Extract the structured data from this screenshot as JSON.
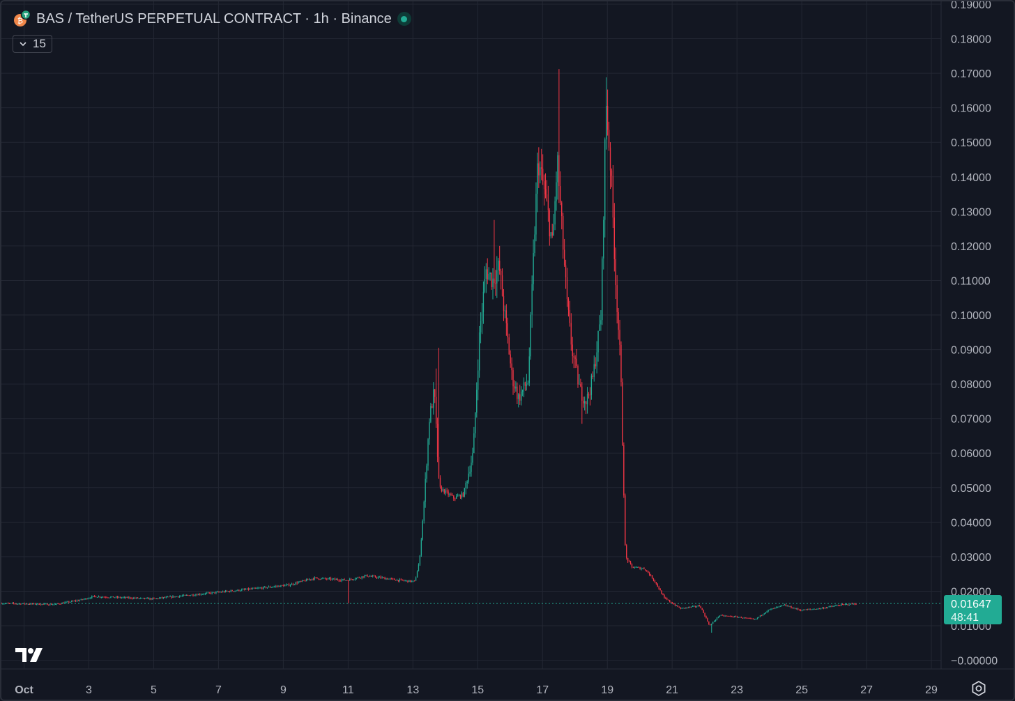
{
  "header": {
    "title": "BAS / TetherUS PERPETUAL CONTRACT · 1h · Binance",
    "indicator_value": "15",
    "status": "open"
  },
  "colors": {
    "background": "#131722",
    "grid": "#232733",
    "up": "#22ab94",
    "down": "#f23645",
    "axis_text": "#b2b5be",
    "price_tag": "#22ab94"
  },
  "icons": {
    "symbol": "bnb-tether-coin-icon",
    "collapse": "chevron-down-icon",
    "logo": "tradingview-logo-icon",
    "settings": "gear-icon"
  },
  "chart_data": {
    "type": "candlestick",
    "title": "BAS / TetherUS PERPETUAL CONTRACT · 1h · Binance",
    "interval": "1h",
    "y_axis": {
      "position": "right",
      "range": [
        -0.0025,
        0.1908
      ],
      "ticks": [
        "0.19000",
        "0.18000",
        "0.17000",
        "0.16000",
        "0.15000",
        "0.14000",
        "0.13000",
        "0.12000",
        "0.11000",
        "0.10000",
        "0.09000",
        "0.08000",
        "0.07000",
        "0.06000",
        "0.05000",
        "0.04000",
        "0.03000",
        "0.02000",
        "0.01000",
        "−0.00000"
      ]
    },
    "x_axis": {
      "range_days": [
        0.3,
        29.3
      ],
      "ticks": [
        {
          "day": 1,
          "label": "Oct"
        },
        {
          "day": 3,
          "label": "3"
        },
        {
          "day": 5,
          "label": "5"
        },
        {
          "day": 7,
          "label": "7"
        },
        {
          "day": 9,
          "label": "9"
        },
        {
          "day": 11,
          "label": "11"
        },
        {
          "day": 13,
          "label": "13"
        },
        {
          "day": 15,
          "label": "15"
        },
        {
          "day": 17,
          "label": "17"
        },
        {
          "day": 19,
          "label": "19"
        },
        {
          "day": 21,
          "label": "21"
        },
        {
          "day": 23,
          "label": "23"
        },
        {
          "day": 25,
          "label": "25"
        },
        {
          "day": 27,
          "label": "27"
        },
        {
          "day": 29,
          "label": "29"
        }
      ]
    },
    "last_price": "0.01647",
    "countdown": "48:41",
    "price_anchors": [
      [
        0.3,
        0.0165
      ],
      [
        2.0,
        0.0162
      ],
      [
        2.8,
        0.0175
      ],
      [
        3.2,
        0.0185
      ],
      [
        5.0,
        0.0178
      ],
      [
        6.5,
        0.0192
      ],
      [
        8.2,
        0.0208
      ],
      [
        9.2,
        0.0218
      ],
      [
        10.0,
        0.0238
      ],
      [
        11.0,
        0.0232
      ],
      [
        11.6,
        0.0245
      ],
      [
        12.6,
        0.0232
      ],
      [
        13.1,
        0.0228
      ],
      [
        13.25,
        0.029
      ],
      [
        13.4,
        0.048
      ],
      [
        13.55,
        0.07
      ],
      [
        13.7,
        0.078
      ],
      [
        13.85,
        0.05
      ],
      [
        14.3,
        0.047
      ],
      [
        14.6,
        0.048
      ],
      [
        14.9,
        0.06
      ],
      [
        15.1,
        0.095
      ],
      [
        15.3,
        0.113
      ],
      [
        15.5,
        0.11
      ],
      [
        15.7,
        0.114
      ],
      [
        15.9,
        0.098
      ],
      [
        16.1,
        0.082
      ],
      [
        16.3,
        0.076
      ],
      [
        16.6,
        0.081
      ],
      [
        16.8,
        0.125
      ],
      [
        16.9,
        0.145
      ],
      [
        17.05,
        0.138
      ],
      [
        17.2,
        0.13
      ],
      [
        17.35,
        0.12
      ],
      [
        17.5,
        0.145
      ],
      [
        17.65,
        0.123
      ],
      [
        17.8,
        0.103
      ],
      [
        17.95,
        0.09
      ],
      [
        18.2,
        0.078
      ],
      [
        18.4,
        0.075
      ],
      [
        18.6,
        0.082
      ],
      [
        18.85,
        0.1
      ],
      [
        19.0,
        0.162
      ],
      [
        19.15,
        0.142
      ],
      [
        19.3,
        0.11
      ],
      [
        19.45,
        0.085
      ],
      [
        19.6,
        0.03
      ],
      [
        19.8,
        0.027
      ],
      [
        20.2,
        0.0265
      ],
      [
        20.5,
        0.023
      ],
      [
        20.8,
        0.018
      ],
      [
        21.3,
        0.015
      ],
      [
        21.9,
        0.0158
      ],
      [
        22.2,
        0.01
      ],
      [
        22.5,
        0.013
      ],
      [
        23.1,
        0.0125
      ],
      [
        23.6,
        0.0118
      ],
      [
        24.0,
        0.0145
      ],
      [
        24.5,
        0.016
      ],
      [
        25.0,
        0.0145
      ],
      [
        25.6,
        0.015
      ],
      [
        26.2,
        0.016
      ],
      [
        26.7,
        0.0164
      ]
    ],
    "wick_spikes": [
      [
        11.0,
        0.0165
      ],
      [
        13.7,
        0.0845
      ],
      [
        13.8,
        0.0905
      ],
      [
        15.5,
        0.1275
      ],
      [
        17.5,
        0.1712
      ],
      [
        18.95,
        0.1688
      ],
      [
        18.2,
        0.0685
      ],
      [
        22.2,
        0.008
      ]
    ],
    "grid": true
  }
}
